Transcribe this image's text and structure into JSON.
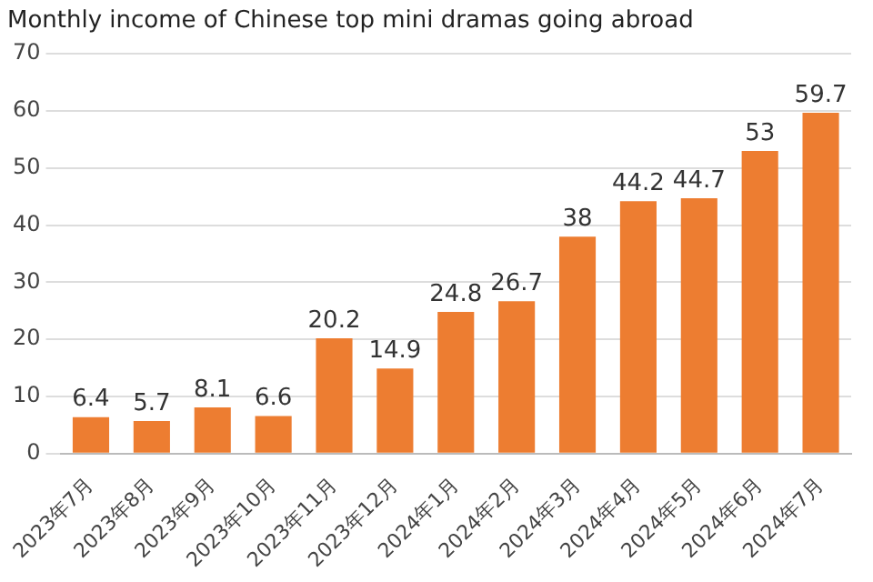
{
  "chart_data": {
    "type": "bar",
    "title": "Monthly income of Chinese top mini dramas going abroad",
    "categories": [
      "2023年7月",
      "2023年8月",
      "2023年9月",
      "2023年10月",
      "2023年11月",
      "2023年12月",
      "2024年1月",
      "2024年2月",
      "2024年3月",
      "2024年4月",
      "2024年5月",
      "2024年6月",
      "2024年7月"
    ],
    "values": [
      6.4,
      5.7,
      8.1,
      6.6,
      20.2,
      14.9,
      24.8,
      26.7,
      38,
      44.2,
      44.7,
      53,
      59.7
    ],
    "color": "#ed7d31",
    "ylim": [
      0,
      70
    ],
    "yticks": [
      0,
      10,
      20,
      30,
      40,
      50,
      60,
      70
    ],
    "grid": "y",
    "data_labels": true
  }
}
